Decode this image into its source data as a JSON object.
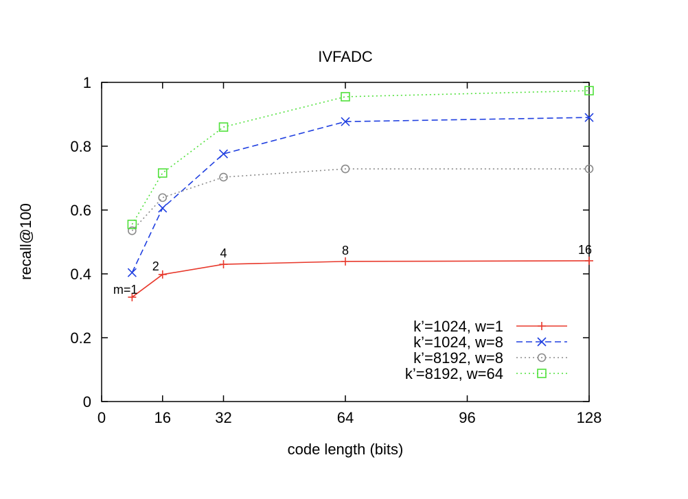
{
  "chart_data": {
    "type": "line",
    "title": "IVFADC",
    "xlabel": "code length (bits)",
    "ylabel": "recall@100",
    "xlim": [
      0,
      128
    ],
    "ylim": [
      0,
      1
    ],
    "xticks": [
      0,
      16,
      32,
      64,
      96,
      128
    ],
    "yticks": [
      0,
      0.2,
      0.4,
      0.6,
      0.8,
      1
    ],
    "ytick_labels": [
      "0",
      "0.2",
      "0.4",
      "0.6",
      "0.8",
      "1"
    ],
    "grid": false,
    "legend_position": "bottom-right",
    "x": [
      8,
      16,
      32,
      64,
      128
    ],
    "series": [
      {
        "name": "k’=1024, w=1",
        "values": [
          0.327,
          0.398,
          0.43,
          0.439,
          0.441
        ],
        "color": "#e8392c",
        "dash": "solid",
        "marker": "plus"
      },
      {
        "name": "k’=1024, w=8",
        "values": [
          0.404,
          0.606,
          0.776,
          0.877,
          0.89
        ],
        "color": "#1f3fe0",
        "dash": "dashed",
        "marker": "x"
      },
      {
        "name": "k’=8192, w=8",
        "values": [
          0.535,
          0.639,
          0.703,
          0.729,
          0.729
        ],
        "color": "#8a8a8a",
        "dash": "dotted",
        "marker": "circle"
      },
      {
        "name": "k’=8192, w=64",
        "values": [
          0.555,
          0.716,
          0.86,
          0.955,
          0.974
        ],
        "color": "#4fe03a",
        "dash": "dotted",
        "marker": "square"
      }
    ],
    "annotations": [
      {
        "x": 8,
        "text": "m=1"
      },
      {
        "x": 16,
        "text": "2"
      },
      {
        "x": 32,
        "text": "4"
      },
      {
        "x": 64,
        "text": "8"
      },
      {
        "x": 128,
        "text": "16"
      }
    ]
  }
}
